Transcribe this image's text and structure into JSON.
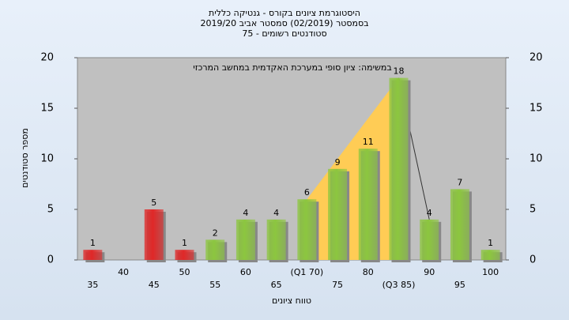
{
  "chart_data": {
    "type": "bar",
    "title": [
      "היסטוגרמת ציונים בקורס - גנטיקה כללית",
      "בסמסטר (02/2019)  סמסטר אביב 2019/20",
      "סטודנטים רשומים - 75"
    ],
    "annotation": "במשימה: ציון סופי במערכת האקדמית במחשב המרכזי",
    "x_label": "טווח ציונים",
    "y_label": "מספר סטודנטים",
    "categories": [
      "35",
      "40",
      "45",
      "50",
      "55",
      "60",
      "65",
      "(Q1 70)",
      "75",
      "80",
      "(Q3 85)",
      "90",
      "95",
      "100"
    ],
    "values": [
      1,
      null,
      5,
      1,
      2,
      4,
      4,
      6,
      9,
      11,
      18,
      4,
      7,
      1
    ],
    "colors": [
      "#e02828",
      "#e02828",
      "#e02828",
      "#e02828",
      "#8cc63f",
      "#8cc63f",
      "#8cc63f",
      "#8cc63f",
      "#8cc63f",
      "#8cc63f",
      "#8cc63f",
      "#8cc63f",
      "#8cc63f",
      "#8cc63f"
    ],
    "quartile_color": "#ffcc55",
    "ylim": [
      0,
      20
    ],
    "yticks": [
      0,
      5,
      10,
      15,
      20
    ],
    "y2lim": [
      0,
      20
    ],
    "y2ticks": [
      0,
      5,
      10,
      15,
      20
    ],
    "grid": false
  }
}
